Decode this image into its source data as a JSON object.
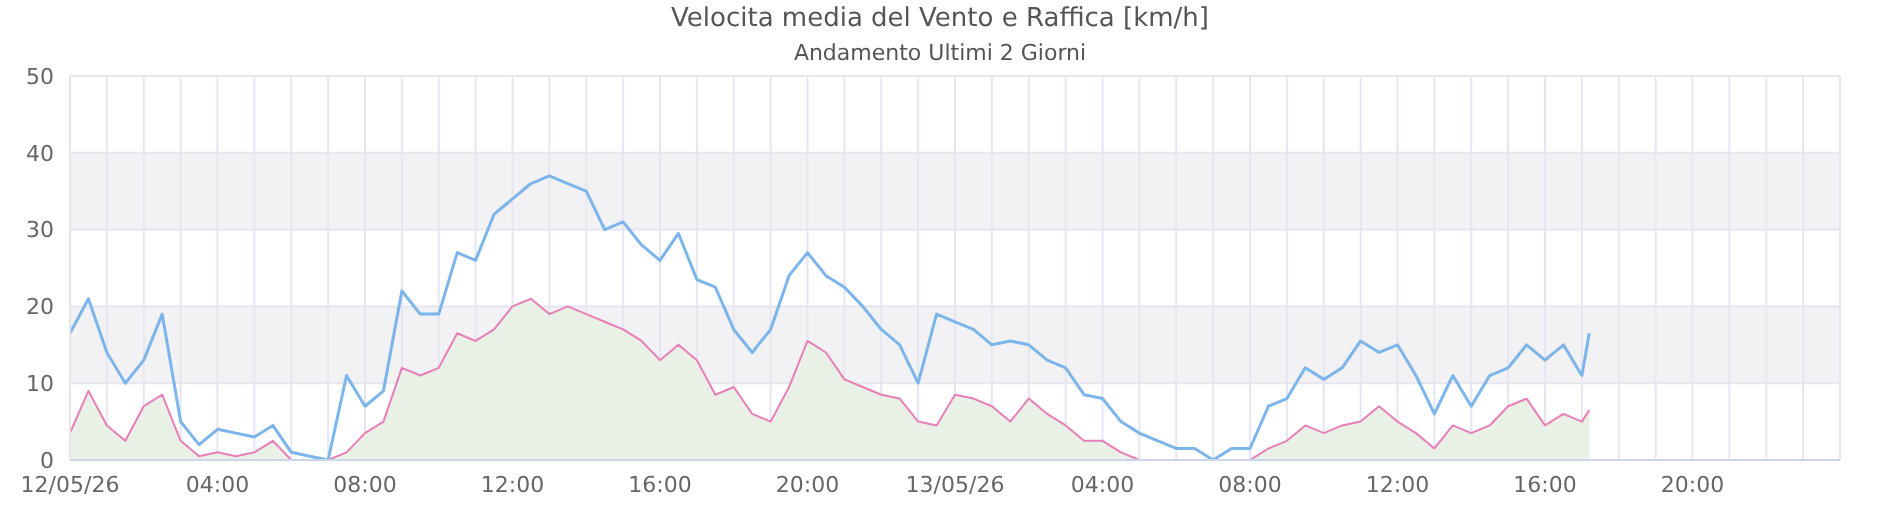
{
  "chart_data": {
    "type": "line",
    "title": "Velocita media del Vento e Raffica [km/h]",
    "subtitle": "Andamento Ultimi 2 Giorni",
    "x": [
      "--05-12T00:00",
      "--05-12T00:30",
      "--05-12T01:00",
      "--05-12T01:30",
      "--05-12T02:00",
      "--05-12T02:30",
      "--05-12T03:00",
      "--05-12T03:30",
      "--05-12T04:00",
      "--05-12T04:30",
      "--05-12T05:00",
      "--05-12T05:30",
      "--05-12T06:00",
      "--05-12T06:30",
      "--05-12T07:00",
      "--05-12T07:30",
      "--05-12T08:00",
      "--05-12T08:30",
      "--05-12T09:00",
      "--05-12T09:30",
      "--05-12T10:00",
      "--05-12T10:30",
      "--05-12T11:00",
      "--05-12T11:30",
      "--05-12T12:00",
      "--05-12T12:30",
      "--05-12T13:00",
      "--05-12T13:30",
      "--05-12T14:00",
      "--05-12T14:30",
      "--05-12T15:00",
      "--05-12T15:30",
      "--05-12T16:00",
      "--05-12T16:30",
      "--05-12T17:00",
      "--05-12T17:30",
      "--05-12T18:00",
      "--05-12T18:30",
      "--05-12T19:00",
      "--05-12T19:30",
      "--05-12T20:00",
      "--05-12T20:30",
      "--05-12T21:00",
      "--05-12T21:30",
      "--05-12T22:00",
      "--05-12T22:30",
      "--05-12T23:00",
      "--05-12T23:30",
      "--05-13T00:00",
      "--05-13T00:30",
      "--05-13T01:00",
      "--05-13T01:30",
      "--05-13T02:00",
      "--05-13T02:30",
      "--05-13T03:00",
      "--05-13T03:30",
      "--05-13T04:00",
      "--05-13T04:30",
      "--05-13T05:00",
      "--05-13T05:30",
      "--05-13T06:00",
      "--05-13T06:30",
      "--05-13T07:00",
      "--05-13T07:30",
      "--05-13T08:00",
      "--05-13T08:30",
      "--05-13T09:00",
      "--05-13T09:30",
      "--05-13T10:00",
      "--05-13T10:30",
      "--05-13T11:00",
      "--05-13T11:30",
      "--05-13T12:00",
      "--05-13T12:30",
      "--05-13T13:00",
      "--05-13T13:30",
      "--05-13T14:00",
      "--05-13T14:30",
      "--05-13T15:00",
      "--05-13T15:30",
      "--05-13T16:00",
      "--05-13T16:30",
      "--05-13T17:00",
      "--05-13T17:12"
    ],
    "series": [
      {
        "type": "area",
        "color": "#e87fb8",
        "values": [
          3.5,
          9,
          4.5,
          2.5,
          7,
          8.5,
          2.5,
          0.5,
          1,
          0.5,
          1,
          2.5,
          0,
          0,
          0,
          1,
          3.5,
          5,
          12,
          11,
          12,
          16.5,
          15.5,
          17,
          20,
          21,
          19,
          20,
          19,
          18,
          17,
          15.5,
          13,
          15,
          13,
          8.5,
          9.5,
          6,
          5,
          9.5,
          15.5,
          14,
          10.5,
          9.5,
          8.5,
          8,
          5,
          4.5,
          8.5,
          8,
          7,
          5,
          8,
          6,
          4.5,
          2.5,
          2.5,
          1,
          0,
          0,
          0,
          0,
          0,
          0,
          0,
          1.5,
          2.5,
          4.5,
          3.5,
          4.5,
          5,
          7,
          5,
          3.5,
          1.5,
          4.5,
          3.5,
          4.5,
          7,
          8,
          4.5,
          6,
          5,
          6.5
        ]
      },
      {
        "type": "line",
        "color": "#7cb5ec",
        "values": [
          16.5,
          21,
          14,
          10,
          13,
          19,
          5,
          2,
          4,
          3.5,
          3,
          4.5,
          1,
          0.5,
          0,
          11,
          7,
          9,
          22,
          19,
          19,
          27,
          26,
          32,
          34,
          36,
          37,
          36,
          35,
          30,
          31,
          28,
          26,
          29.5,
          23.5,
          22.5,
          17,
          14,
          17,
          24,
          27,
          24,
          22.5,
          20,
          17,
          15,
          10,
          19,
          18,
          17,
          15,
          15.5,
          15,
          13,
          12,
          8.5,
          8,
          5,
          3.5,
          2.5,
          1.5,
          1.5,
          0,
          1.5,
          1.5,
          7,
          8,
          12,
          10.5,
          12,
          15.5,
          14,
          15,
          11,
          6,
          11,
          7,
          11,
          12,
          15,
          13,
          15,
          11,
          16.5
        ]
      }
    ],
    "xlim": [
      "--05-12T00:00",
      "--05-14T00:00"
    ],
    "xticks": [
      {
        "value": "--05-12T00:00",
        "label": "12/05/26"
      },
      {
        "value": "--05-12T01:00",
        "label": null
      },
      {
        "value": "--05-12T02:00",
        "label": null
      },
      {
        "value": "--05-12T03:00",
        "label": null
      },
      {
        "value": "--05-12T04:00",
        "label": "04:00"
      },
      {
        "value": "--05-12T05:00",
        "label": null
      },
      {
        "value": "--05-12T06:00",
        "label": null
      },
      {
        "value": "--05-12T07:00",
        "label": null
      },
      {
        "value": "--05-12T08:00",
        "label": "08:00"
      },
      {
        "value": "--05-12T09:00",
        "label": null
      },
      {
        "value": "--05-12T10:00",
        "label": null
      },
      {
        "value": "--05-12T11:00",
        "label": null
      },
      {
        "value": "--05-12T12:00",
        "label": "12:00"
      },
      {
        "value": "--05-12T13:00",
        "label": null
      },
      {
        "value": "--05-12T14:00",
        "label": null
      },
      {
        "value": "--05-12T15:00",
        "label": null
      },
      {
        "value": "--05-12T16:00",
        "label": "16:00"
      },
      {
        "value": "--05-12T17:00",
        "label": null
      },
      {
        "value": "--05-12T18:00",
        "label": null
      },
      {
        "value": "--05-12T19:00",
        "label": null
      },
      {
        "value": "--05-12T20:00",
        "label": "20:00"
      },
      {
        "value": "--05-12T21:00",
        "label": null
      },
      {
        "value": "--05-12T22:00",
        "label": null
      },
      {
        "value": "--05-12T23:00",
        "label": null
      },
      {
        "value": "--05-13T00:00",
        "label": "13/05/26"
      },
      {
        "value": "--05-13T01:00",
        "label": null
      },
      {
        "value": "--05-13T02:00",
        "label": null
      },
      {
        "value": "--05-13T03:00",
        "label": null
      },
      {
        "value": "--05-13T04:00",
        "label": "04:00"
      },
      {
        "value": "--05-13T05:00",
        "label": null
      },
      {
        "value": "--05-13T06:00",
        "label": null
      },
      {
        "value": "--05-13T07:00",
        "label": null
      },
      {
        "value": "--05-13T08:00",
        "label": "08:00"
      },
      {
        "value": "--05-13T09:00",
        "label": null
      },
      {
        "value": "--05-13T10:00",
        "label": null
      },
      {
        "value": "--05-13T11:00",
        "label": null
      },
      {
        "value": "--05-13T12:00",
        "label": "12:00"
      },
      {
        "value": "--05-13T13:00",
        "label": null
      },
      {
        "value": "--05-13T14:00",
        "label": null
      },
      {
        "value": "--05-13T15:00",
        "label": null
      },
      {
        "value": "--05-13T16:00",
        "label": "16:00"
      },
      {
        "value": "--05-13T17:00",
        "label": null
      },
      {
        "value": "--05-13T18:00",
        "label": null
      },
      {
        "value": "--05-13T19:00",
        "label": null
      },
      {
        "value": "--05-13T20:00",
        "label": "20:00"
      },
      {
        "value": "--05-13T21:00",
        "label": null
      },
      {
        "value": "--05-13T22:00",
        "label": null
      },
      {
        "value": "--05-13T23:00",
        "label": null
      },
      {
        "value": "--05-14T00:00",
        "label": null
      }
    ],
    "ylim": [
      0,
      50
    ],
    "yticks": [
      0,
      10,
      20,
      30,
      40,
      50
    ],
    "grid": true,
    "marker": "none",
    "line_style": "solid"
  }
}
